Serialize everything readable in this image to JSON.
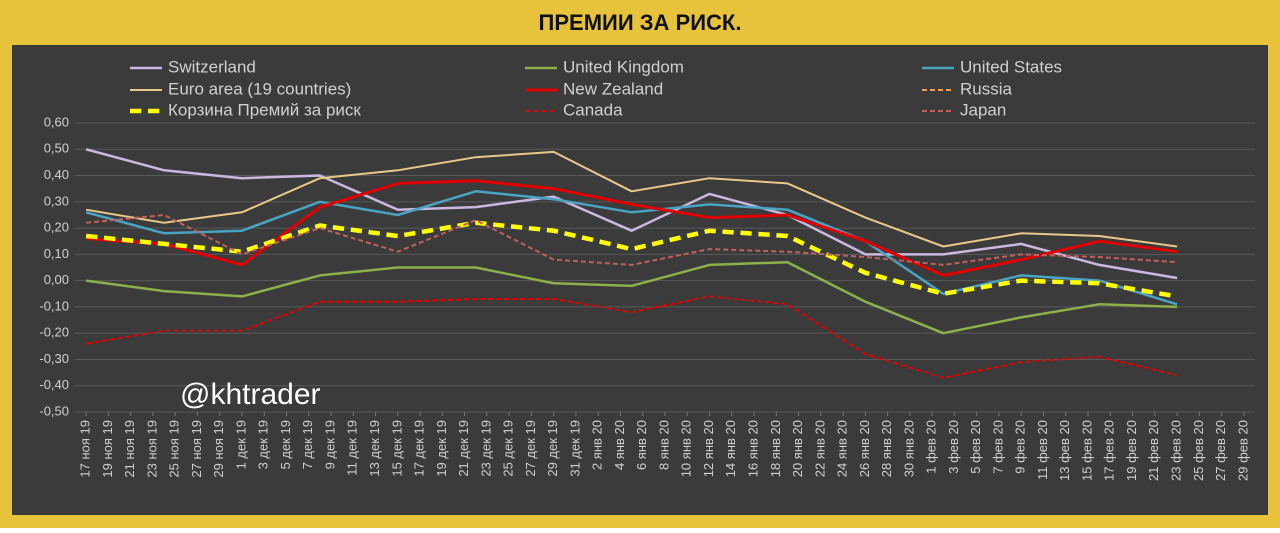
{
  "chart_data": {
    "type": "line",
    "title": "ПРЕМИИ ЗА РИСК.",
    "annotation": "@khtrader",
    "x": [
      "2019-11-17",
      "2019-11-24",
      "2019-12-01",
      "2019-12-08",
      "2019-12-15",
      "2019-12-22",
      "2019-12-29",
      "2020-01-05",
      "2020-01-12",
      "2020-01-19",
      "2020-01-26",
      "2020-02-02",
      "2020-02-09",
      "2020-02-16",
      "2020-02-23"
    ],
    "xlim": [
      "2019-11-16",
      "2020-03-01"
    ],
    "xticks": [
      {
        "value": "2019-11-17",
        "label": "17 ноя 19"
      },
      {
        "value": "2019-11-19",
        "label": "19 ноя 19"
      },
      {
        "value": "2019-11-21",
        "label": "21 ноя 19"
      },
      {
        "value": "2019-11-23",
        "label": "23 ноя 19"
      },
      {
        "value": "2019-11-25",
        "label": "25 ноя 19"
      },
      {
        "value": "2019-11-27",
        "label": "27 ноя 19"
      },
      {
        "value": "2019-11-29",
        "label": "29 ноя 19"
      },
      {
        "value": "2019-12-01",
        "label": "1 дек 19"
      },
      {
        "value": "2019-12-03",
        "label": "3 дек 19"
      },
      {
        "value": "2019-12-05",
        "label": "5 дек 19"
      },
      {
        "value": "2019-12-07",
        "label": "7 дек 19"
      },
      {
        "value": "2019-12-09",
        "label": "9 дек 19"
      },
      {
        "value": "2019-12-11",
        "label": "11 дек 19"
      },
      {
        "value": "2019-12-13",
        "label": "13 дек 19"
      },
      {
        "value": "2019-12-15",
        "label": "15 дек 19"
      },
      {
        "value": "2019-12-17",
        "label": "17 дек 19"
      },
      {
        "value": "2019-12-19",
        "label": "19 дек 19"
      },
      {
        "value": "2019-12-21",
        "label": "21 дек 19"
      },
      {
        "value": "2019-12-23",
        "label": "23 дек 19"
      },
      {
        "value": "2019-12-25",
        "label": "25 дек 19"
      },
      {
        "value": "2019-12-27",
        "label": "27 дек 19"
      },
      {
        "value": "2019-12-29",
        "label": "29 дек 19"
      },
      {
        "value": "2019-12-31",
        "label": "31 дек 19"
      },
      {
        "value": "2020-01-02",
        "label": "2 янв 20"
      },
      {
        "value": "2020-01-04",
        "label": "4 янв 20"
      },
      {
        "value": "2020-01-06",
        "label": "6 янв 20"
      },
      {
        "value": "2020-01-08",
        "label": "8 янв 20"
      },
      {
        "value": "2020-01-10",
        "label": "10 янв 20"
      },
      {
        "value": "2020-01-12",
        "label": "12 янв 20"
      },
      {
        "value": "2020-01-14",
        "label": "14 янв 20"
      },
      {
        "value": "2020-01-16",
        "label": "16 янв 20"
      },
      {
        "value": "2020-01-18",
        "label": "18 янв 20"
      },
      {
        "value": "2020-01-20",
        "label": "20 янв 20"
      },
      {
        "value": "2020-01-22",
        "label": "22 янв 20"
      },
      {
        "value": "2020-01-24",
        "label": "24 янв 20"
      },
      {
        "value": "2020-01-26",
        "label": "26 янв 20"
      },
      {
        "value": "2020-01-28",
        "label": "28 янв 20"
      },
      {
        "value": "2020-01-30",
        "label": "30 янв 20"
      },
      {
        "value": "2020-02-01",
        "label": "1 фев 20"
      },
      {
        "value": "2020-02-03",
        "label": "3 фев 20"
      },
      {
        "value": "2020-02-05",
        "label": "5 фев 20"
      },
      {
        "value": "2020-02-07",
        "label": "7 фев 20"
      },
      {
        "value": "2020-02-09",
        "label": "9 фев 20"
      },
      {
        "value": "2020-02-11",
        "label": "11 фев 20"
      },
      {
        "value": "2020-02-13",
        "label": "13 фев 20"
      },
      {
        "value": "2020-02-15",
        "label": "15 фев 20"
      },
      {
        "value": "2020-02-17",
        "label": "17 фев 20"
      },
      {
        "value": "2020-02-19",
        "label": "19 фев 20"
      },
      {
        "value": "2020-02-21",
        "label": "21 фев 20"
      },
      {
        "value": "2020-02-23",
        "label": "23 фев 20"
      },
      {
        "value": "2020-02-25",
        "label": "25 фев 20"
      },
      {
        "value": "2020-02-27",
        "label": "27 фев 20"
      },
      {
        "value": "2020-02-29",
        "label": "29 фев 20"
      }
    ],
    "ylim": [
      -0.5,
      0.6
    ],
    "yticks": [
      {
        "value": 0.6,
        "label": "0,60"
      },
      {
        "value": 0.5,
        "label": "0,50"
      },
      {
        "value": 0.4,
        "label": "0,40"
      },
      {
        "value": 0.3,
        "label": "0,30"
      },
      {
        "value": 0.2,
        "label": "0,20"
      },
      {
        "value": 0.1,
        "label": "0,10"
      },
      {
        "value": 0,
        "label": "0,00"
      },
      {
        "value": -0.1,
        "label": "-0,10"
      },
      {
        "value": -0.2,
        "label": "-0,20"
      },
      {
        "value": -0.3,
        "label": "-0,30"
      },
      {
        "value": -0.4,
        "label": "-0,40"
      },
      {
        "value": -0.5,
        "label": "-0,50"
      }
    ],
    "grid": true,
    "series": [
      {
        "name": "Switzerland",
        "color": "#c9b8e0",
        "width": 2.5,
        "dash": false,
        "values": [
          0.5,
          0.42,
          0.39,
          0.4,
          0.27,
          0.28,
          0.32,
          0.19,
          0.33,
          0.25,
          0.1,
          0.1,
          0.14,
          0.06,
          0.01
        ]
      },
      {
        "name": "United Kingdom",
        "color": "#8db04c",
        "width": 2.5,
        "dash": false,
        "values": [
          0.0,
          -0.04,
          -0.06,
          0.02,
          0.05,
          0.05,
          -0.01,
          -0.02,
          0.06,
          0.07,
          -0.08,
          -0.2,
          -0.14,
          -0.09,
          -0.1
        ]
      },
      {
        "name": "United States",
        "color": "#4aa3c3",
        "width": 2.5,
        "dash": false,
        "values": [
          0.26,
          0.18,
          0.19,
          0.3,
          0.25,
          0.34,
          0.31,
          0.26,
          0.29,
          0.27,
          0.15,
          -0.05,
          0.02,
          0.0,
          -0.09
        ]
      },
      {
        "name": "Euro area (19 countries)",
        "color": "#e8c98a",
        "width": 2,
        "dash": false,
        "values": [
          0.27,
          0.22,
          0.26,
          0.39,
          0.42,
          0.47,
          0.49,
          0.34,
          0.39,
          0.37,
          0.24,
          0.13,
          0.18,
          0.17,
          0.13
        ]
      },
      {
        "name": "New Zealand",
        "color": "#e00000",
        "width": 3,
        "dash": false,
        "values": [
          0.16,
          0.14,
          0.06,
          0.28,
          0.37,
          0.38,
          0.35,
          0.29,
          0.24,
          0.25,
          0.15,
          0.02,
          0.08,
          0.15,
          0.11
        ]
      },
      {
        "name": "Russia",
        "color": "#f0a050",
        "width": 2,
        "dash": true,
        "values": [
          null,
          null,
          null,
          null,
          null,
          null,
          null,
          null,
          null,
          null,
          null,
          null,
          null,
          null,
          null
        ]
      },
      {
        "name": "Корзина Премий за риск",
        "color": "#ffff00",
        "width": 4.5,
        "dash": true,
        "values": [
          0.17,
          0.14,
          0.11,
          0.21,
          0.17,
          0.22,
          0.19,
          0.12,
          0.19,
          0.17,
          0.03,
          -0.05,
          0.0,
          -0.01,
          -0.06
        ]
      },
      {
        "name": "Canada",
        "color": "#e00000",
        "width": 2,
        "dash": true,
        "values": [
          -0.24,
          -0.19,
          -0.19,
          -0.08,
          -0.08,
          -0.07,
          -0.07,
          -0.12,
          -0.06,
          -0.09,
          -0.28,
          -0.37,
          -0.31,
          -0.29,
          -0.36
        ]
      },
      {
        "name": "Japan",
        "color": "#c06060",
        "width": 2,
        "dash": true,
        "values": [
          0.22,
          0.25,
          0.1,
          0.2,
          0.11,
          0.23,
          0.08,
          0.06,
          0.12,
          0.11,
          0.09,
          0.06,
          0.1,
          0.09,
          0.07
        ]
      }
    ]
  }
}
